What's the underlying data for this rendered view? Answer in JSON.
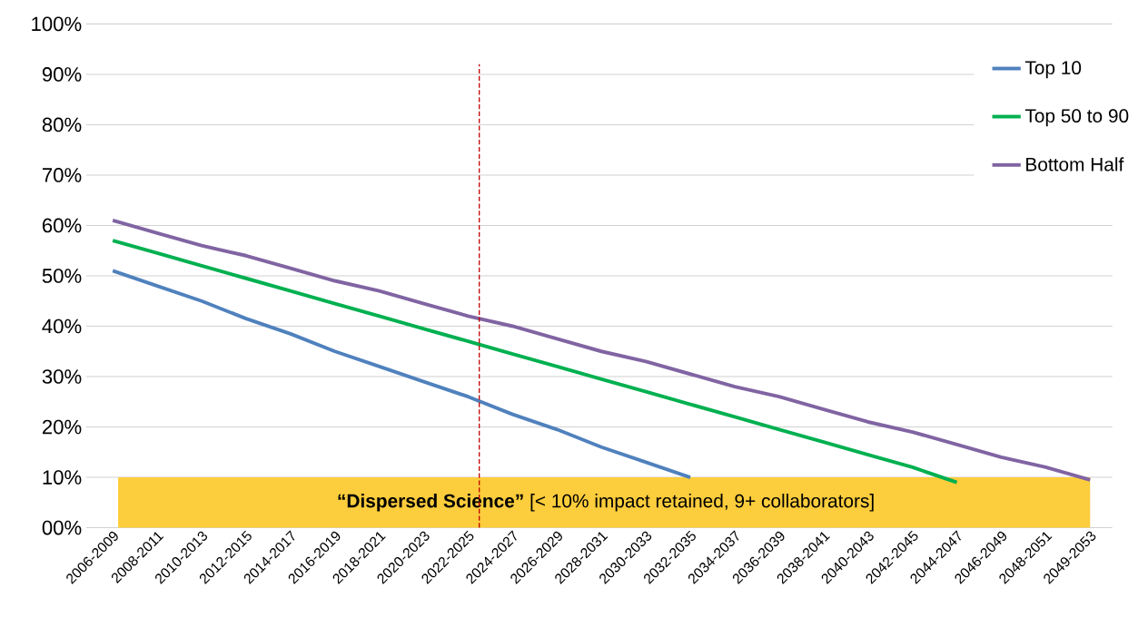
{
  "chart_data": {
    "type": "line",
    "categories": [
      "2006-2009",
      "2008-2011",
      "2010-2013",
      "2012-2015",
      "2014-2017",
      "2016-2019",
      "2018-2021",
      "2020-2023",
      "2022-2025",
      "2024-2027",
      "2026-2029",
      "2028-2031",
      "2030-2033",
      "2032-2035",
      "2034-2037",
      "2036-2039",
      "2038-2041",
      "2040-2043",
      "2042-2045",
      "2044-2047",
      "2046-2049",
      "2048-2051",
      "2049-2053"
    ],
    "series": [
      {
        "name": "Top 10",
        "color": "#4f81bd",
        "values": [
          51,
          48,
          45,
          41.5,
          38.5,
          35,
          32,
          29,
          26,
          22.5,
          19.5,
          16,
          13,
          10,
          null,
          null,
          null,
          null,
          null,
          null,
          null,
          null,
          null
        ]
      },
      {
        "name": "Top 50 to 90",
        "color": "#00b050",
        "values": [
          57,
          54.5,
          52,
          49.5,
          47,
          44.5,
          42,
          39.5,
          37,
          34.5,
          32,
          29.5,
          27,
          24.5,
          22,
          19.5,
          17,
          14.5,
          12,
          9,
          null,
          null,
          null
        ]
      },
      {
        "name": "Bottom Half",
        "color": "#8064a2",
        "values": [
          61,
          58.5,
          56,
          54,
          51.5,
          49,
          47,
          44.5,
          42,
          40,
          37.5,
          35,
          33,
          30.5,
          28,
          26,
          23.5,
          21,
          19,
          16.5,
          14,
          12,
          9.5
        ]
      }
    ],
    "ylim": [
      0,
      100
    ],
    "yticks": [
      {
        "value": 0,
        "label": "00%"
      },
      {
        "value": 10,
        "label": "10%"
      },
      {
        "value": 20,
        "label": "20%"
      },
      {
        "value": 30,
        "label": "30%"
      },
      {
        "value": 40,
        "label": "40%"
      },
      {
        "value": 50,
        "label": "50%"
      },
      {
        "value": 60,
        "label": "60%"
      },
      {
        "value": 70,
        "label": "70%"
      },
      {
        "value": 80,
        "label": "80%"
      },
      {
        "value": 90,
        "label": "90%"
      },
      {
        "value": 100,
        "label": "100%"
      }
    ],
    "ref_lines": [
      {
        "axis": "x",
        "value": "2022-2025",
        "color": "#c00000",
        "line_style": "dashed"
      }
    ],
    "bands": [
      {
        "axis": "y",
        "from": 0,
        "to": 10,
        "color": "#fccd3c",
        "label": "**“Dispersed Science”** [< 10% impact retained, 9+ collaborators]"
      }
    ],
    "grid": "y",
    "legend": "top right",
    "marker": "none",
    "line_style": "solid"
  }
}
